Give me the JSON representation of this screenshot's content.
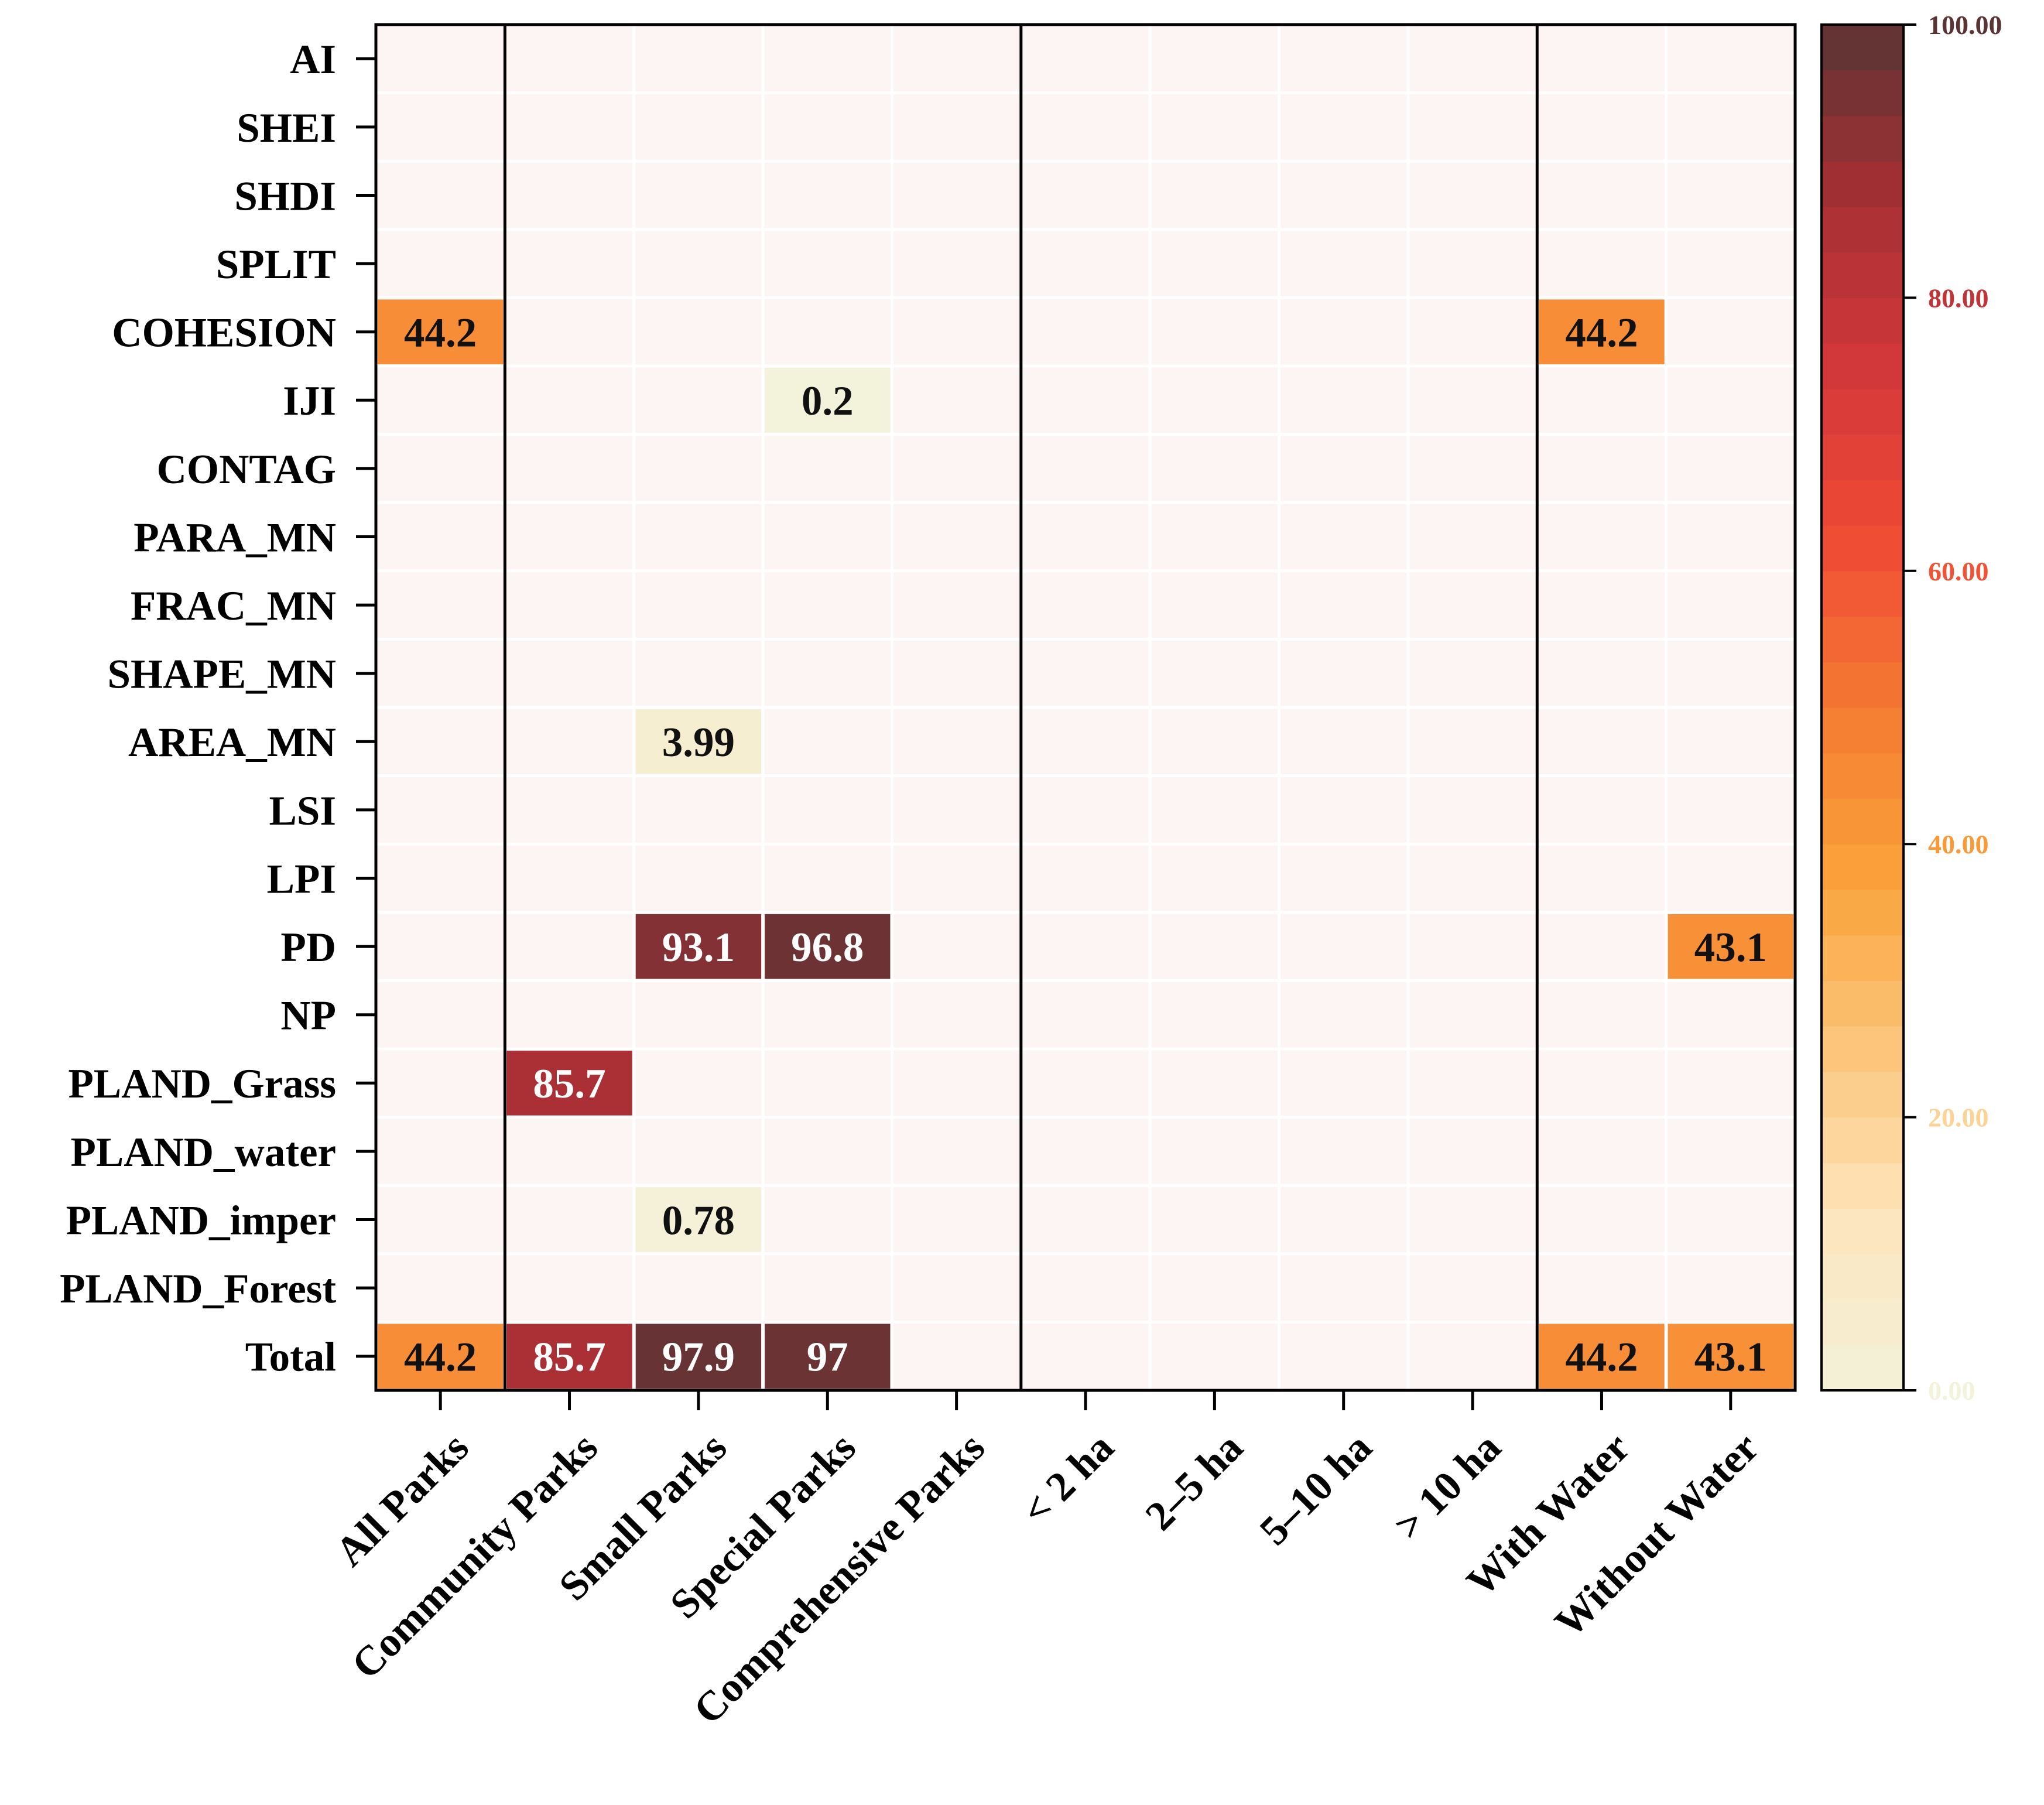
{
  "chart_data": {
    "type": "heatmap",
    "title": "",
    "xlabel": "",
    "ylabel": "",
    "columns": [
      "All Parks",
      "Community Parks",
      "Small Parks",
      "Special  Parks",
      "Comprehensive Parks",
      "< 2 ha",
      "2–5 ha",
      "5–10 ha",
      "> 10 ha",
      "With Water",
      "Without Water"
    ],
    "rows": [
      "AI",
      "SHEI",
      "SHDI",
      "SPLIT",
      "COHESION",
      "IJI",
      "CONTAG",
      "PARA_MN",
      "FRAC_MN",
      "SHAPE_MN",
      "AREA_MN",
      "LSI",
      "LPI",
      "PD",
      "NP",
      "PLAND_Grass",
      "PLAND_water",
      "PLAND_imper",
      "PLAND_Forest",
      "Total"
    ],
    "cells": [
      {
        "row": "COHESION",
        "col": "All Parks",
        "value": 44.2,
        "label": "44.2"
      },
      {
        "row": "COHESION",
        "col": "With Water",
        "value": 44.2,
        "label": "44.2"
      },
      {
        "row": "IJI",
        "col": "Special  Parks",
        "value": 0.2,
        "label": "0.2"
      },
      {
        "row": "AREA_MN",
        "col": "Small Parks",
        "value": 3.99,
        "label": "3.99"
      },
      {
        "row": "PD",
        "col": "Small Parks",
        "value": 93.1,
        "label": "93.1"
      },
      {
        "row": "PD",
        "col": "Special  Parks",
        "value": 96.8,
        "label": "96.8"
      },
      {
        "row": "PD",
        "col": "Without Water",
        "value": 43.1,
        "label": "43.1"
      },
      {
        "row": "PLAND_Grass",
        "col": "Community Parks",
        "value": 85.7,
        "label": "85.7"
      },
      {
        "row": "PLAND_imper",
        "col": "Small Parks",
        "value": 0.78,
        "label": "0.78"
      },
      {
        "row": "Total",
        "col": "All Parks",
        "value": 44.2,
        "label": "44.2"
      },
      {
        "row": "Total",
        "col": "Community Parks",
        "value": 85.7,
        "label": "85.7"
      },
      {
        "row": "Total",
        "col": "Small Parks",
        "value": 97.9,
        "label": "97.9"
      },
      {
        "row": "Total",
        "col": "Special  Parks",
        "value": 97,
        "label": "97"
      },
      {
        "row": "Total",
        "col": "With Water",
        "value": 44.2,
        "label": "44.2"
      },
      {
        "row": "Total",
        "col": "Without Water",
        "value": 43.1,
        "label": "43.1"
      }
    ],
    "group_dividers_after_columns": [
      "All Parks",
      "Comprehensive Parks",
      "> 10 ha"
    ],
    "colorbar": {
      "range": [
        0,
        100
      ],
      "ticks": [
        {
          "value": 0,
          "label": "0.00"
        },
        {
          "value": 20,
          "label": "20.00"
        },
        {
          "value": 40,
          "label": "40.00"
        },
        {
          "value": 60,
          "label": "60.00"
        },
        {
          "value": 80,
          "label": "80.00"
        },
        {
          "value": 100,
          "label": "100.00"
        }
      ],
      "color_stops": [
        "#f3f2da",
        "#fde5bd",
        "#fcc57b",
        "#faa23a",
        "#f47a32",
        "#f04a35",
        "#d2373a",
        "#a52f34",
        "#5a3434"
      ]
    },
    "empty_cell_color": "#fdf5f4",
    "grid": true
  }
}
